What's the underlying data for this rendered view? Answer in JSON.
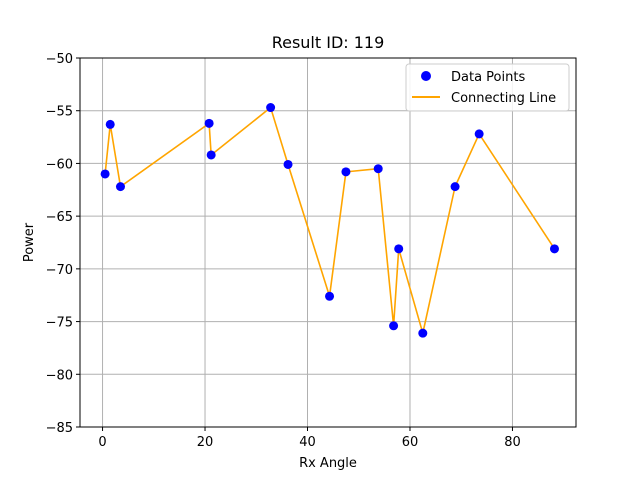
{
  "chart_data": {
    "type": "scatter",
    "title": "Result ID: 119",
    "xlabel": "Rx Angle",
    "ylabel": "Power",
    "xlim": [
      -4.4,
      92.4
    ],
    "ylim": [
      -85,
      -50
    ],
    "xticks": [
      0,
      20,
      40,
      60,
      80
    ],
    "yticks": [
      -85,
      -80,
      -75,
      -70,
      -65,
      -60,
      -55,
      -50
    ],
    "grid": true,
    "legend_position": "top-right",
    "series": [
      {
        "name": "Data Points",
        "kind": "scatter",
        "color": "#0000ff",
        "x": [
          0.5,
          1.5,
          3.5,
          20.8,
          21.2,
          32.8,
          36.2,
          44.3,
          47.5,
          53.8,
          56.8,
          57.8,
          62.5,
          68.8,
          73.5,
          88.2
        ],
        "y": [
          -61.0,
          -56.3,
          -62.2,
          -56.2,
          -59.2,
          -54.7,
          -60.1,
          -72.6,
          -60.8,
          -60.5,
          -75.4,
          -68.1,
          -76.1,
          -62.2,
          -57.2,
          -68.1
        ]
      },
      {
        "name": "Connecting Line",
        "kind": "line",
        "color": "#ffa500",
        "x": [
          0.5,
          1.5,
          3.5,
          20.8,
          21.2,
          32.8,
          36.2,
          44.3,
          47.5,
          53.8,
          56.8,
          57.8,
          62.5,
          68.8,
          73.5,
          88.2
        ],
        "y": [
          -61.0,
          -56.3,
          -62.2,
          -56.2,
          -59.2,
          -54.7,
          -60.1,
          -72.6,
          -60.8,
          -60.5,
          -75.4,
          -68.1,
          -76.1,
          -62.2,
          -57.2,
          -68.1
        ]
      }
    ]
  }
}
